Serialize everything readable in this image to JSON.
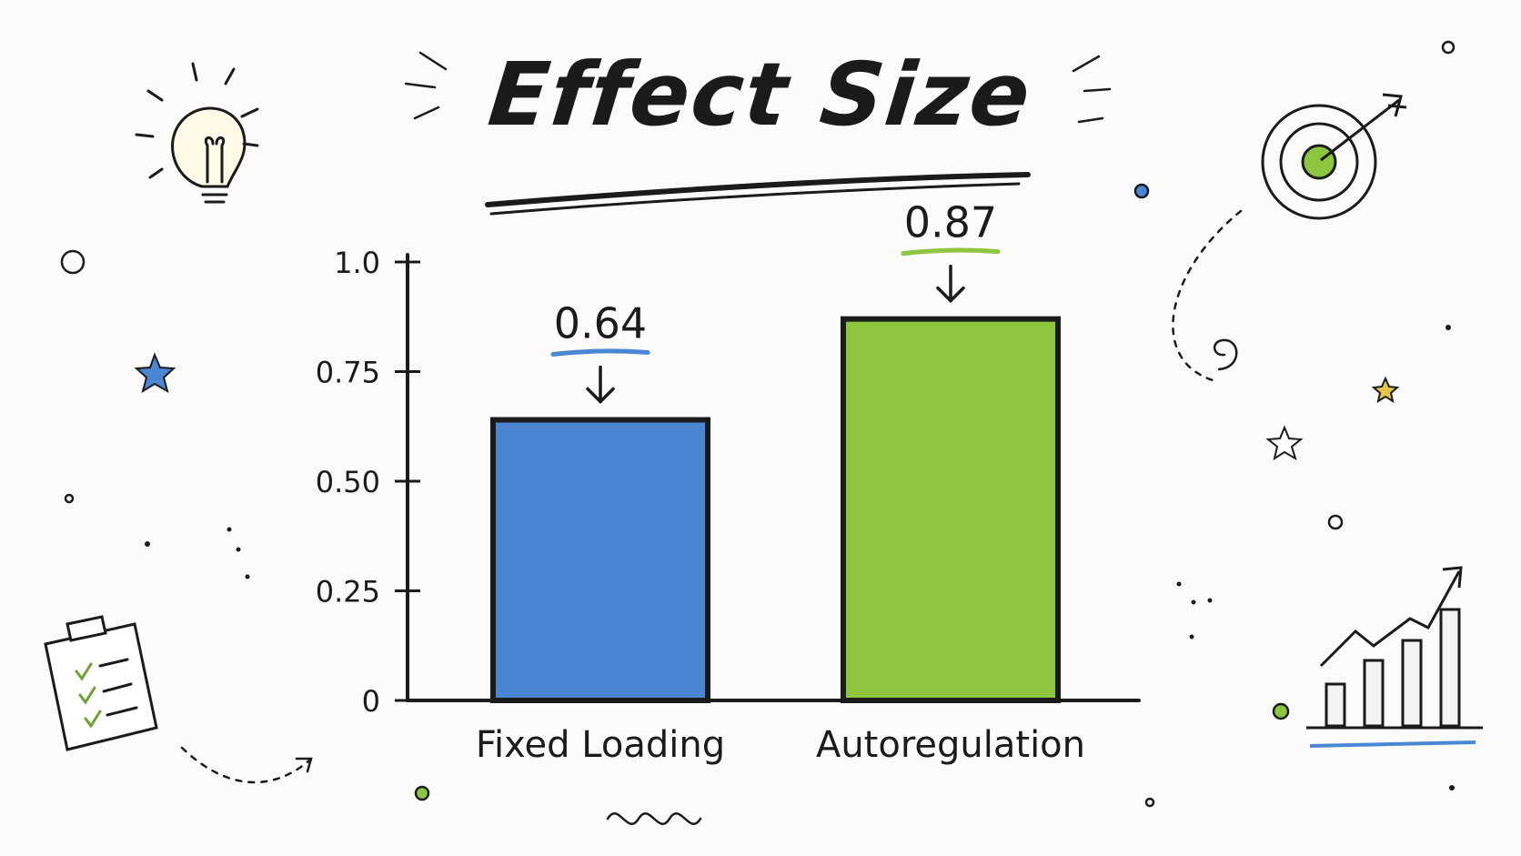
{
  "chart_data": {
    "type": "bar",
    "title": "Effect Size",
    "categories": [
      "Fixed Loading",
      "Autoregulation"
    ],
    "series": [
      {
        "values": [
          0.64,
          0.87
        ]
      }
    ],
    "value_labels": [
      "0.64",
      "0.87"
    ],
    "ylim": [
      0,
      1.0
    ],
    "yticks": [
      0,
      0.25,
      0.5,
      0.75,
      1.0
    ],
    "ytick_labels": [
      "0",
      "0.25",
      "0.50",
      "0.75",
      "1.0"
    ],
    "xlabel": "",
    "ylabel": "",
    "grid": false,
    "colors": [
      "#4a86d4",
      "#8cc63f"
    ]
  },
  "decorations": {
    "icons": [
      "lightbulb-icon",
      "target-icon",
      "clipboard-checklist-icon",
      "growth-chart-icon",
      "star-icon"
    ],
    "colors": {
      "ink": "#1b1b1b",
      "blue": "#4a86d4",
      "green": "#8cc63f",
      "yellow": "#e6c34a"
    }
  }
}
